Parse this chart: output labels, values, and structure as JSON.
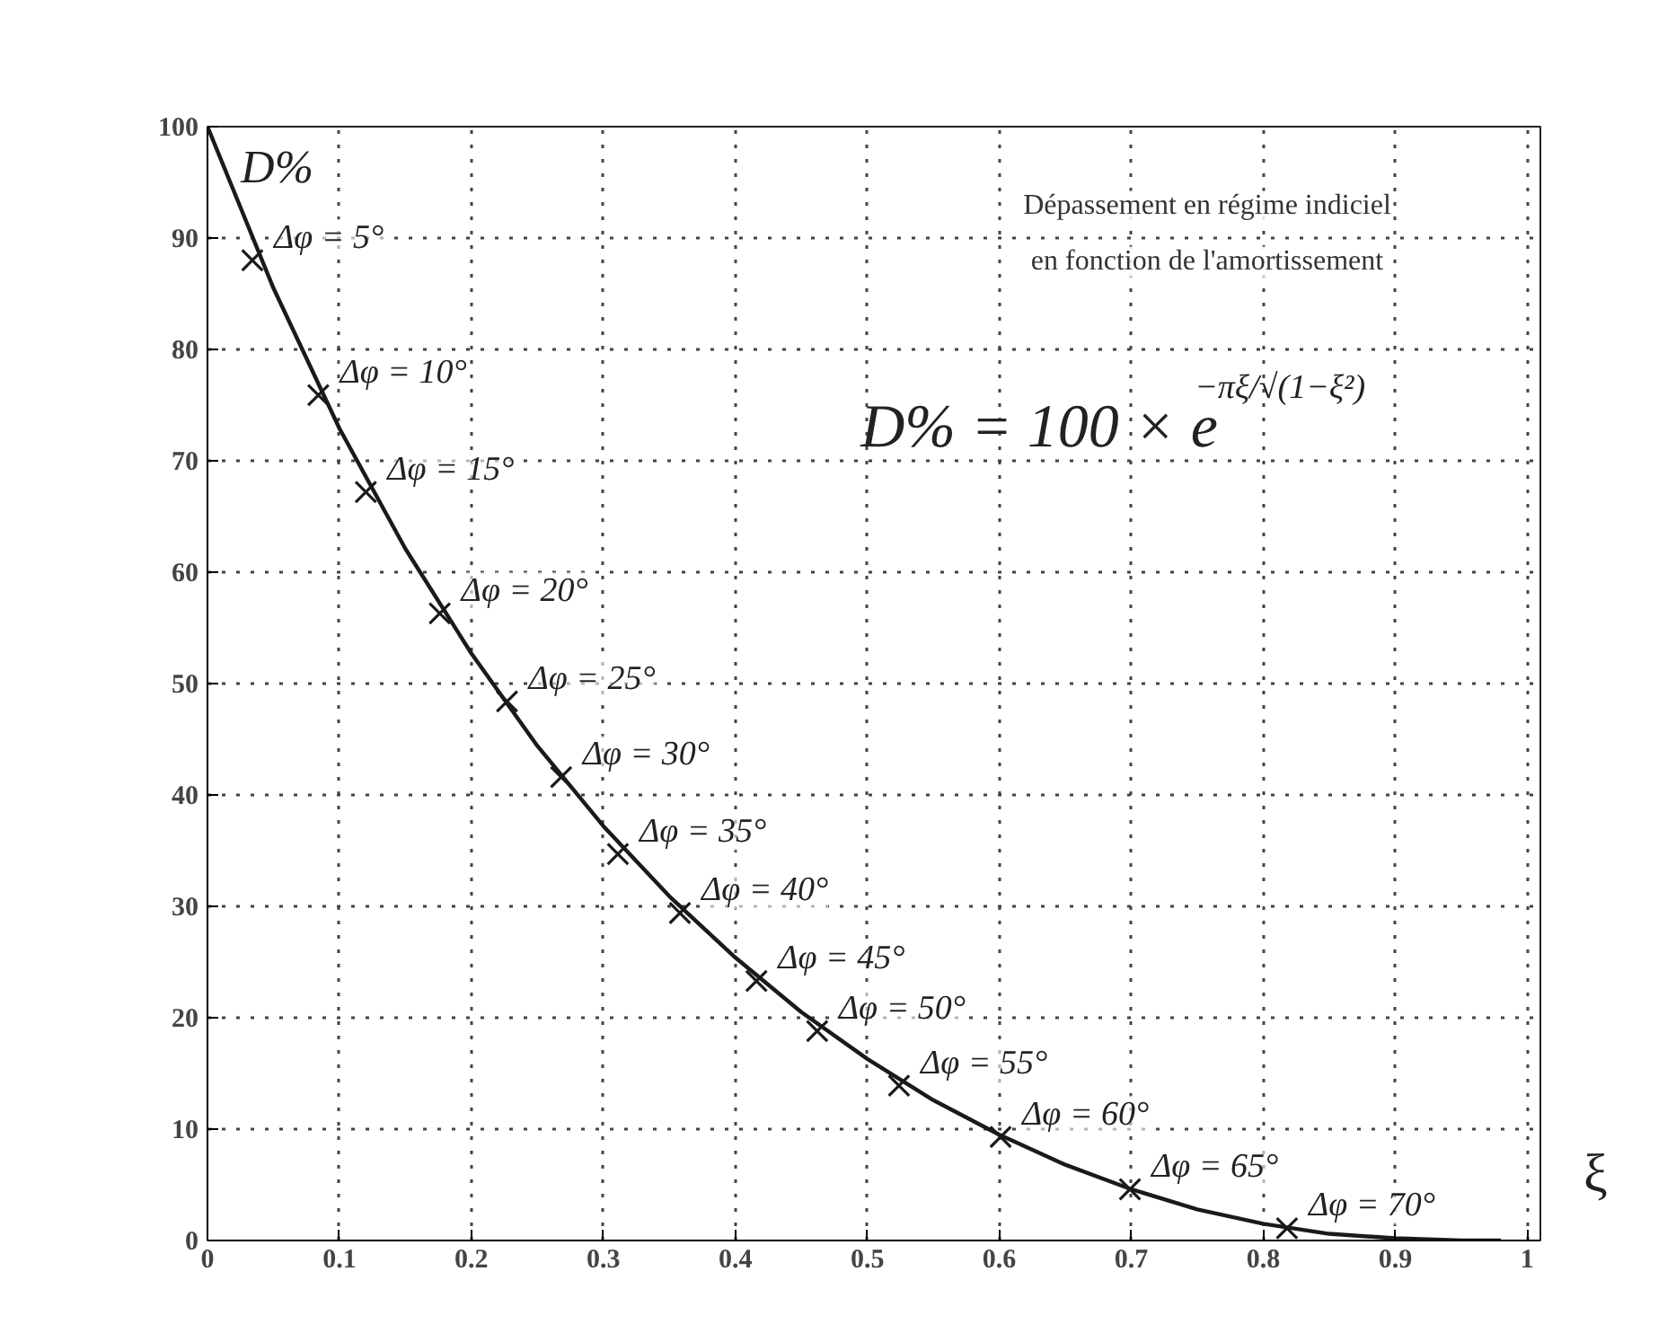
{
  "chart_data": {
    "type": "line",
    "title": "Dépassement en régime indiciel\nen fonction de l'amortissement",
    "xlabel": "ξ",
    "ylabel": "D%",
    "xlim": [
      0,
      1.01
    ],
    "ylim": [
      0,
      100
    ],
    "xticks": [
      0,
      0.1,
      0.2,
      0.3,
      0.4,
      0.5,
      0.6,
      0.7,
      0.8,
      0.9,
      1
    ],
    "yticks": [
      0,
      10,
      20,
      30,
      40,
      50,
      60,
      70,
      80,
      90,
      100
    ],
    "grid": true,
    "line_style": "solid",
    "series": [
      {
        "type": "line",
        "color": "#1a1a1a",
        "marker": "none",
        "x": [
          0,
          0.05,
          0.1,
          0.15,
          0.2,
          0.25,
          0.3,
          0.35,
          0.4,
          0.45,
          0.5,
          0.55,
          0.6,
          0.65,
          0.7,
          0.75,
          0.8,
          0.85,
          0.9,
          0.95,
          0.98
        ],
        "values": [
          100,
          85.5,
          72.9,
          62.1,
          52.7,
          44.4,
          37.2,
          30.9,
          25.4,
          20.5,
          16.3,
          12.6,
          9.5,
          6.8,
          4.6,
          2.8,
          1.5,
          0.6,
          0.2,
          0,
          0
        ]
      },
      {
        "type": "scatter",
        "color": "#1a1a1a",
        "marker": "cross",
        "x": [
          0.034,
          0.084,
          0.12,
          0.176,
          0.227,
          0.268,
          0.311,
          0.358,
          0.416,
          0.462,
          0.524,
          0.601,
          0.699,
          0.818
        ],
        "values": [
          88,
          75.9,
          67.2,
          56.3,
          48.4,
          41.6,
          34.7,
          29.4,
          23.3,
          18.8,
          13.9,
          9.3,
          4.6,
          1.1
        ]
      }
    ],
    "annotations": [
      {
        "text": "Δφ = 5°",
        "x": 0.034,
        "y": 88
      },
      {
        "text": "Δφ = 10°",
        "x": 0.084,
        "y": 75.9
      },
      {
        "text": "Δφ = 15°",
        "x": 0.12,
        "y": 67.2
      },
      {
        "text": "Δφ = 20°",
        "x": 0.176,
        "y": 56.3
      },
      {
        "text": "Δφ = 25°",
        "x": 0.227,
        "y": 48.4
      },
      {
        "text": "Δφ = 30°",
        "x": 0.268,
        "y": 41.6
      },
      {
        "text": "Δφ = 35°",
        "x": 0.311,
        "y": 34.7
      },
      {
        "text": "Δφ = 40°",
        "x": 0.358,
        "y": 29.4
      },
      {
        "text": "Δφ = 45°",
        "x": 0.416,
        "y": 23.3
      },
      {
        "text": "Δφ = 50°",
        "x": 0.462,
        "y": 18.8
      },
      {
        "text": "Δφ = 55°",
        "x": 0.524,
        "y": 13.9
      },
      {
        "text": "Δφ = 60°",
        "x": 0.601,
        "y": 9.3
      },
      {
        "text": "Δφ = 65°",
        "x": 0.699,
        "y": 4.6
      },
      {
        "text": "Δφ = 70°",
        "x": 0.818,
        "y": 1.1
      },
      "D% = 100 × e$^{−πξ/√(1−ξ²)}$"
    ]
  }
}
